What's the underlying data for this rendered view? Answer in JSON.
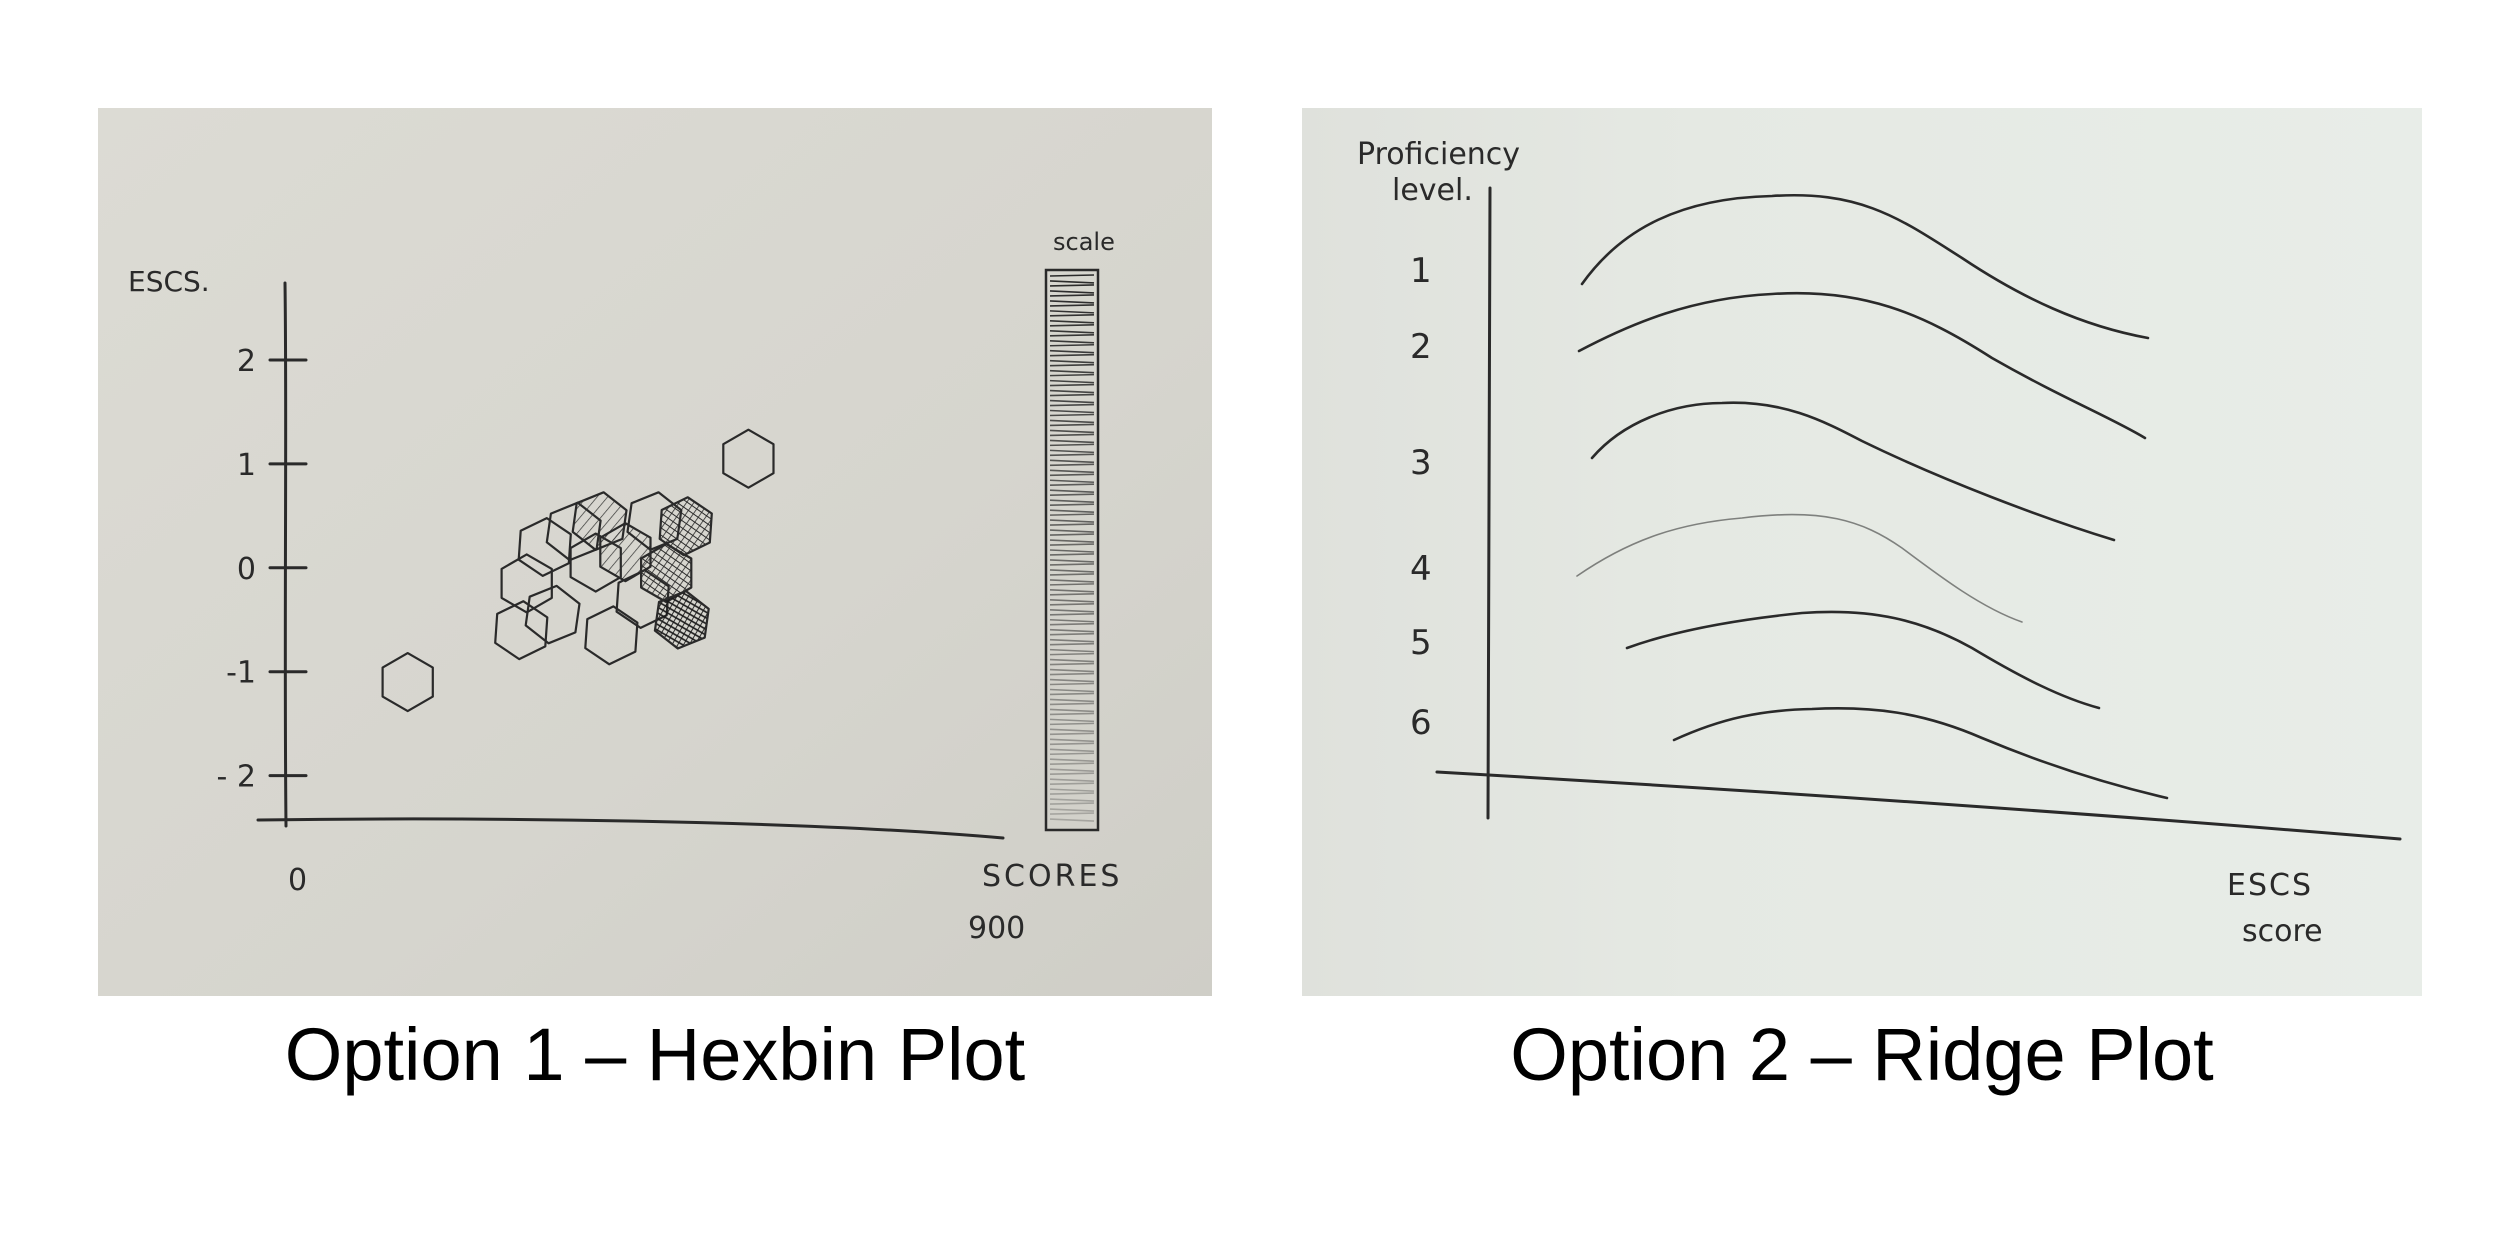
{
  "captions": {
    "option1": "Option 1 – Hexbin Plot",
    "option2": "Option 2 – Ridge Plot"
  },
  "colors": {
    "paper_left": "#d8d7d0",
    "paper_right": "#e3e8e2",
    "ink": "#2a2a2a"
  },
  "chart_data": [
    {
      "type": "hexbin",
      "xlabel": "SCORES",
      "ylabel": "ESCS.",
      "x_tick_labels": [
        "0",
        "900"
      ],
      "y_tick_labels": [
        "2",
        "1",
        "0",
        "-1",
        "- 2"
      ],
      "xlim": [
        0,
        900
      ],
      "ylim": [
        -2.6,
        2.5
      ],
      "legend_title": "scale",
      "legend_placement": "right",
      "hexagons": [
        {
          "x": 140,
          "y": -1.1,
          "density": 0
        },
        {
          "x": 285,
          "y": -0.6,
          "density": 0
        },
        {
          "x": 325,
          "y": -0.45,
          "density": 0
        },
        {
          "x": 292,
          "y": -0.15,
          "density": 0
        },
        {
          "x": 315,
          "y": 0.2,
          "density": 0
        },
        {
          "x": 352,
          "y": 0.35,
          "density": 0
        },
        {
          "x": 380,
          "y": 0.05,
          "density": 0
        },
        {
          "x": 400,
          "y": -0.65,
          "density": 0
        },
        {
          "x": 385,
          "y": 0.45,
          "density": 1
        },
        {
          "x": 418,
          "y": 0.15,
          "density": 1
        },
        {
          "x": 440,
          "y": -0.3,
          "density": 0
        },
        {
          "x": 455,
          "y": 0.45,
          "density": 0
        },
        {
          "x": 470,
          "y": -0.05,
          "density": 2
        },
        {
          "x": 495,
          "y": 0.4,
          "density": 2
        },
        {
          "x": 490,
          "y": -0.5,
          "density": 3
        },
        {
          "x": 575,
          "y": 1.05,
          "density": 0
        }
      ]
    },
    {
      "type": "ridge",
      "ylabel": "Proficiency level.",
      "xlabel": "ESCS score",
      "y_tick_labels": [
        "1",
        "2",
        "3",
        "4",
        "5",
        "6"
      ]
    }
  ]
}
